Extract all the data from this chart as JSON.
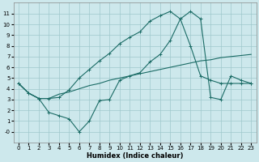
{
  "xlabel": "Humidex (Indice chaleur)",
  "background_color": "#cde8ec",
  "grid_color": "#9ec8cc",
  "line_color": "#1a6b65",
  "xlim": [
    -0.5,
    23.5
  ],
  "ylim": [
    -1,
    12
  ],
  "xticks": [
    0,
    1,
    2,
    3,
    4,
    5,
    6,
    7,
    8,
    9,
    10,
    11,
    12,
    13,
    14,
    15,
    16,
    17,
    18,
    19,
    20,
    21,
    22,
    23
  ],
  "yticks": [
    0,
    1,
    2,
    3,
    4,
    5,
    6,
    7,
    8,
    9,
    10,
    11
  ],
  "series1_x": [
    0,
    1,
    2,
    3,
    4,
    5,
    6,
    7,
    8,
    9,
    10,
    11,
    12,
    13,
    14,
    15,
    16,
    17,
    18,
    19,
    20,
    21,
    22,
    23
  ],
  "series1_y": [
    4.5,
    3.6,
    3.1,
    3.1,
    3.5,
    3.7,
    4.0,
    4.3,
    4.5,
    4.8,
    5.0,
    5.2,
    5.4,
    5.6,
    5.8,
    6.0,
    6.2,
    6.4,
    6.6,
    6.7,
    6.9,
    7.0,
    7.1,
    7.2
  ],
  "series2_x": [
    0,
    1,
    2,
    3,
    4,
    5,
    6,
    7,
    8,
    9,
    10,
    11,
    12,
    13,
    14,
    15,
    16,
    17,
    18,
    19,
    20,
    21,
    22,
    23
  ],
  "series2_y": [
    4.5,
    3.6,
    3.1,
    3.1,
    3.2,
    3.9,
    5.0,
    5.8,
    6.6,
    7.3,
    8.2,
    8.8,
    9.3,
    10.3,
    10.8,
    11.2,
    10.5,
    8.0,
    5.2,
    4.8,
    4.5,
    4.5,
    4.5,
    4.5
  ],
  "series3_x": [
    0,
    1,
    2,
    3,
    4,
    5,
    6,
    7,
    8,
    9,
    10,
    11,
    12,
    13,
    14,
    15,
    16,
    17,
    18,
    19,
    20,
    21,
    22,
    23
  ],
  "series3_y": [
    4.5,
    3.6,
    3.1,
    1.8,
    1.5,
    1.2,
    0.0,
    1.0,
    2.9,
    3.0,
    4.8,
    5.2,
    5.5,
    6.5,
    7.2,
    8.5,
    10.5,
    11.2,
    10.5,
    3.2,
    3.0,
    5.2,
    4.8,
    4.5
  ]
}
